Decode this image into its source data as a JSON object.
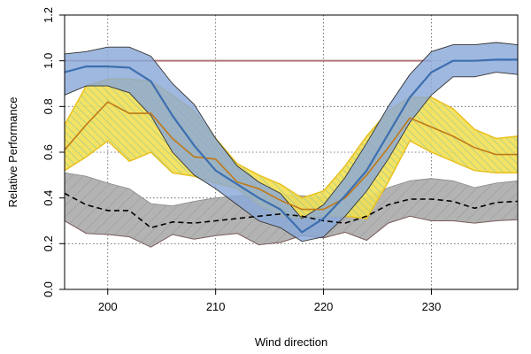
{
  "chart_data": {
    "type": "area",
    "title": "",
    "xlabel": "Wind direction",
    "ylabel": "Relative Performance",
    "xlim": [
      196,
      238
    ],
    "ylim": [
      0,
      1.2
    ],
    "x_ticks": [
      200,
      210,
      220,
      230
    ],
    "y_ticks": [
      0.0,
      0.2,
      0.4,
      0.6,
      0.8,
      1.0,
      1.2
    ],
    "x_tick_labels": [
      "200",
      "210",
      "220",
      "230"
    ],
    "y_tick_labels": [
      "0.0",
      "0.2",
      "0.4",
      "0.6",
      "0.8",
      "1.0",
      "1.2"
    ],
    "grid": true,
    "reference_line": {
      "y": 1.0,
      "color": "#b07878"
    },
    "x": [
      196,
      198,
      200,
      202,
      204,
      206,
      208,
      210,
      212,
      214,
      216,
      218,
      220,
      222,
      224,
      226,
      228,
      230,
      232,
      234,
      236,
      238
    ],
    "series": [
      {
        "name": "gray",
        "fill": "#b3b3b3",
        "edge": "#7a5a5a",
        "line_color": "#000000",
        "line_style": "dashed",
        "mean": [
          0.42,
          0.37,
          0.345,
          0.345,
          0.27,
          0.295,
          0.29,
          0.3,
          0.31,
          0.32,
          0.33,
          0.32,
          0.3,
          0.29,
          0.32,
          0.37,
          0.395,
          0.395,
          0.385,
          0.355,
          0.38,
          0.385
        ],
        "lower": [
          0.3,
          0.245,
          0.24,
          0.23,
          0.185,
          0.24,
          0.22,
          0.235,
          0.245,
          0.195,
          0.205,
          0.235,
          0.225,
          0.25,
          0.215,
          0.29,
          0.32,
          0.3,
          0.3,
          0.29,
          0.3,
          0.305
        ],
        "upper": [
          0.51,
          0.495,
          0.465,
          0.44,
          0.375,
          0.365,
          0.385,
          0.4,
          0.41,
          0.415,
          0.415,
          0.41,
          0.405,
          0.39,
          0.4,
          0.445,
          0.475,
          0.485,
          0.475,
          0.445,
          0.465,
          0.475
        ]
      },
      {
        "name": "yellow",
        "fill": "#f3e052",
        "edge": "#e8c020",
        "line_color": "#c07818",
        "line_style": "solid",
        "mean": [
          0.61,
          0.72,
          0.82,
          0.77,
          0.77,
          0.66,
          0.58,
          0.57,
          0.47,
          0.44,
          0.39,
          0.35,
          0.35,
          0.4,
          0.5,
          0.62,
          0.75,
          0.71,
          0.67,
          0.62,
          0.59,
          0.59
        ],
        "lower": [
          0.52,
          0.58,
          0.65,
          0.56,
          0.6,
          0.51,
          0.495,
          0.465,
          0.44,
          0.37,
          0.32,
          0.31,
          0.32,
          0.32,
          0.31,
          0.47,
          0.65,
          0.6,
          0.56,
          0.52,
          0.51,
          0.51
        ],
        "upper": [
          0.72,
          0.89,
          0.92,
          0.92,
          0.91,
          0.85,
          0.78,
          0.66,
          0.55,
          0.5,
          0.46,
          0.4,
          0.43,
          0.54,
          0.67,
          0.78,
          0.84,
          0.84,
          0.79,
          0.7,
          0.66,
          0.67
        ]
      },
      {
        "name": "blue",
        "fill": "#8aa8d8",
        "edge": "#333333",
        "line_color": "#3d6fb0",
        "line_style": "solid",
        "mean": [
          0.95,
          0.975,
          0.975,
          0.97,
          0.91,
          0.76,
          0.63,
          0.52,
          0.46,
          0.4,
          0.35,
          0.25,
          0.31,
          0.41,
          0.52,
          0.68,
          0.84,
          0.95,
          1.0,
          1.0,
          1.005,
          1.005
        ],
        "lower": [
          0.85,
          0.89,
          0.89,
          0.86,
          0.76,
          0.6,
          0.5,
          0.44,
          0.37,
          0.3,
          0.27,
          0.21,
          0.23,
          0.32,
          0.43,
          0.57,
          0.73,
          0.85,
          0.93,
          0.93,
          0.95,
          0.94
        ],
        "upper": [
          1.03,
          1.04,
          1.06,
          1.06,
          1.02,
          0.9,
          0.81,
          0.66,
          0.54,
          0.47,
          0.42,
          0.31,
          0.37,
          0.49,
          0.64,
          0.8,
          0.94,
          1.04,
          1.07,
          1.07,
          1.08,
          1.07
        ]
      }
    ]
  }
}
